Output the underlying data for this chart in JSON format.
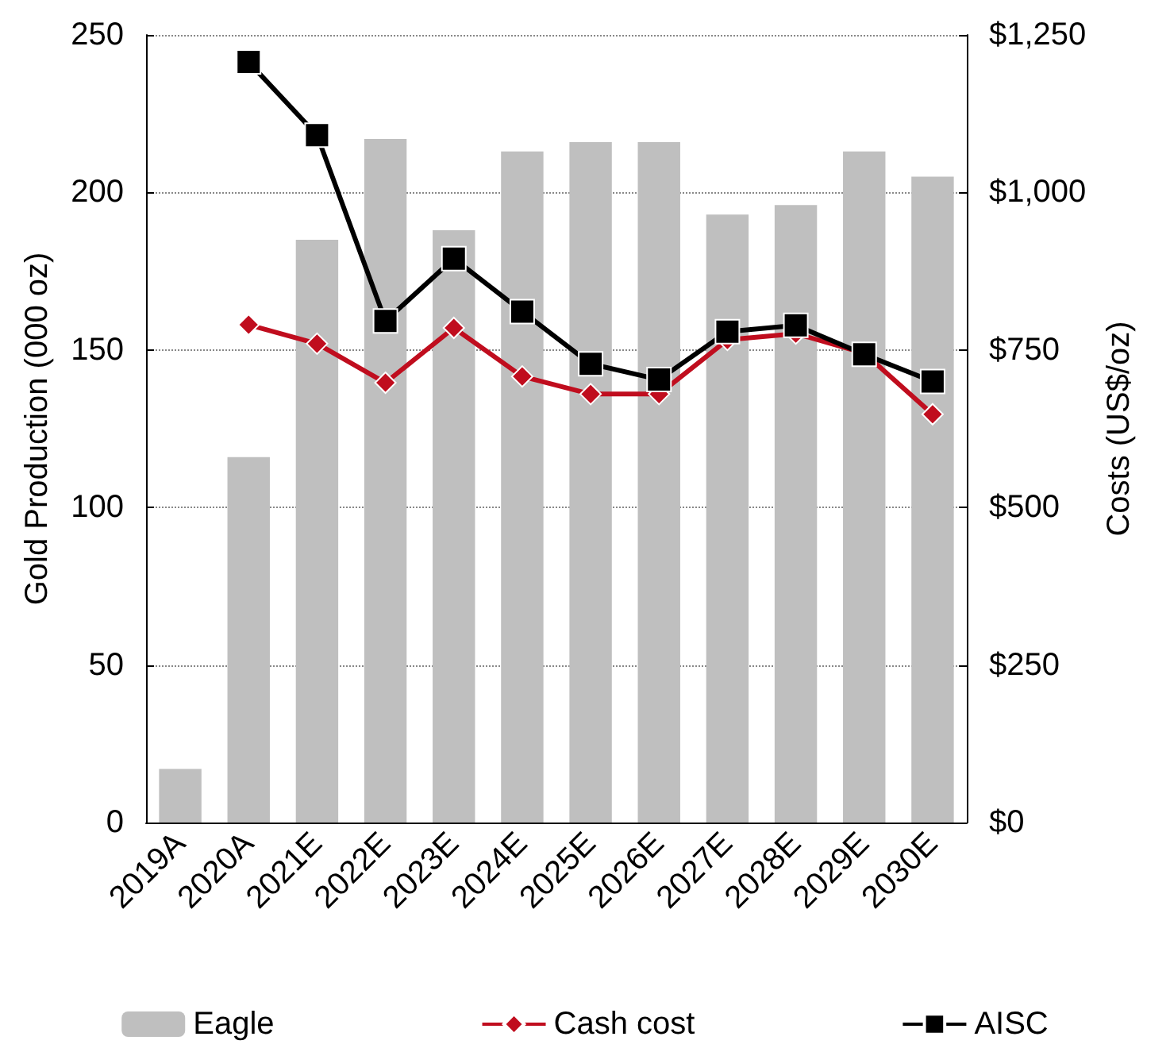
{
  "chart_data": {
    "type": "bar",
    "ylabel": "Gold Production (000 oz)",
    "y2label": "Costs (US$/oz)",
    "categories": [
      "2019A",
      "2020A",
      "2021E",
      "2022E",
      "2023E",
      "2024E",
      "2025E",
      "2026E",
      "2027E",
      "2028E",
      "2029E",
      "2030E"
    ],
    "series": [
      {
        "name": "Eagle",
        "color": "#bfbfbf",
        "values": [
          17,
          116,
          185,
          217,
          188,
          213,
          216,
          216,
          193,
          196,
          213,
          205
        ]
      },
      {
        "name": "Cash cost",
        "type": "line",
        "axis": "y2",
        "color": "#c00d1e",
        "marker": "diamond",
        "values": [
          null,
          790,
          760,
          698,
          785,
          708,
          680,
          680,
          766,
          776,
          745,
          648
        ]
      },
      {
        "name": "AISC",
        "type": "line",
        "axis": "y2",
        "color": "#000000",
        "marker": "square",
        "values": [
          null,
          1207,
          1091,
          796,
          895,
          811,
          728,
          703,
          779,
          789,
          743,
          700
        ]
      }
    ],
    "ylim": [
      0,
      250
    ],
    "yticks": [
      0,
      50,
      100,
      150,
      200,
      250
    ],
    "y2lim": [
      0,
      1250
    ],
    "y2ticks": [
      {
        "value": 0,
        "label": "$0"
      },
      {
        "value": 250,
        "label": "$250"
      },
      {
        "value": 500,
        "label": "$500"
      },
      {
        "value": 750,
        "label": "$750"
      },
      {
        "value": 1000,
        "label": "$1,000"
      },
      {
        "value": 1250,
        "label": "$1,250"
      }
    ],
    "grid": "y",
    "legend": "bottom"
  }
}
